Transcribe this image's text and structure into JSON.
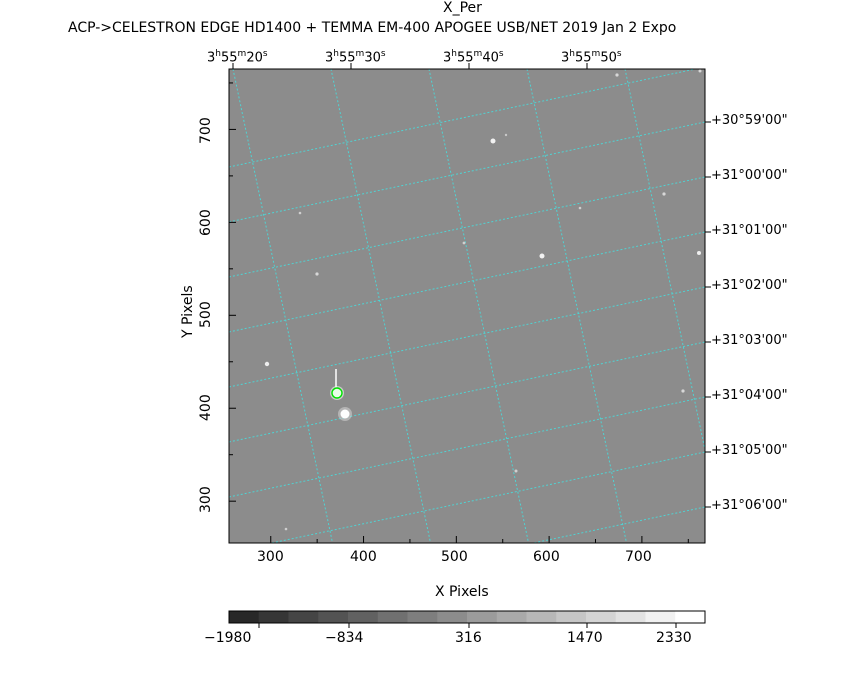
{
  "header": {
    "object_name": "X_Per",
    "instrument_line": "ACP->CELESTRON EDGE HD1400 + TEMMA EM-400 APOGEE USB/NET   2019 Jan  2    Expo"
  },
  "axes": {
    "x_label": "X Pixels",
    "y_label": "Y Pixels",
    "x_ticks": [
      "300",
      "400",
      "500",
      "600",
      "700"
    ],
    "y_ticks": [
      "300",
      "400",
      "500",
      "600",
      "700"
    ],
    "x_range": [
      255,
      768
    ],
    "y_range": [
      255,
      765
    ]
  },
  "ra_labels": [
    {
      "h": "3",
      "m": "55",
      "s": "20"
    },
    {
      "h": "3",
      "m": "55",
      "s": "30"
    },
    {
      "h": "3",
      "m": "55",
      "s": "40"
    },
    {
      "h": "3",
      "m": "55",
      "s": "50"
    }
  ],
  "dec_labels": [
    "+30°59'00\"",
    "+31°00'00\"",
    "+31°01'00\"",
    "+31°02'00\"",
    "+31°03'00\"",
    "+31°04'00\"",
    "+31°05'00\"",
    "+31°06'00\""
  ],
  "colorbar": {
    "labels": [
      "−1980",
      "−834",
      "316",
      "1470",
      "2330"
    ]
  },
  "colors": {
    "image_gray": "#8c8c8c",
    "grid": "#4fd3d3",
    "target_marker": "#00e000"
  }
}
